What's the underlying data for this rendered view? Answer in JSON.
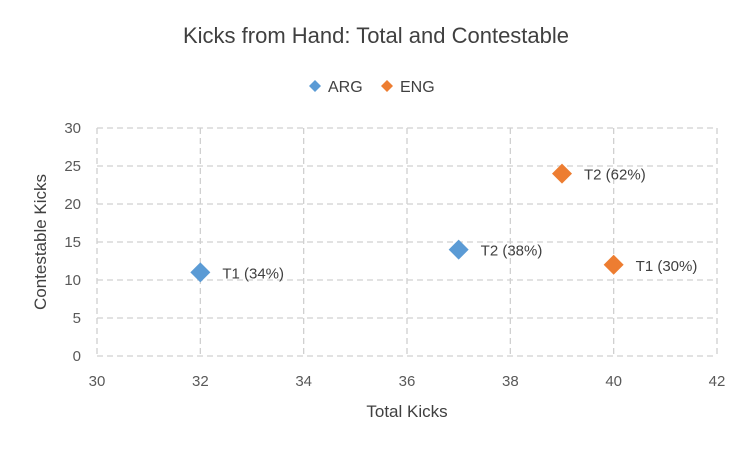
{
  "chart_data": {
    "type": "scatter",
    "title": "Kicks from Hand: Total and Contestable",
    "xlabel": "Total Kicks",
    "ylabel": "Contestable Kicks",
    "xlim": [
      30,
      42
    ],
    "ylim": [
      0,
      30
    ],
    "x_ticks": [
      30,
      32,
      34,
      36,
      38,
      40,
      42
    ],
    "y_ticks": [
      0,
      5,
      10,
      15,
      20,
      25,
      30
    ],
    "grid": true,
    "legend_position": "top",
    "series": [
      {
        "name": "ARG",
        "color": "#5B9BD5",
        "marker": "diamond",
        "points": [
          {
            "x": 32,
            "y": 11,
            "label": "T1 (34%)"
          },
          {
            "x": 37,
            "y": 14,
            "label": "T2 (38%)"
          }
        ]
      },
      {
        "name": "ENG",
        "color": "#ED7D31",
        "marker": "diamond",
        "points": [
          {
            "x": 39,
            "y": 24,
            "label": "T2 (62%)"
          },
          {
            "x": 40,
            "y": 12,
            "label": "T1 (30%)"
          }
        ]
      }
    ]
  }
}
